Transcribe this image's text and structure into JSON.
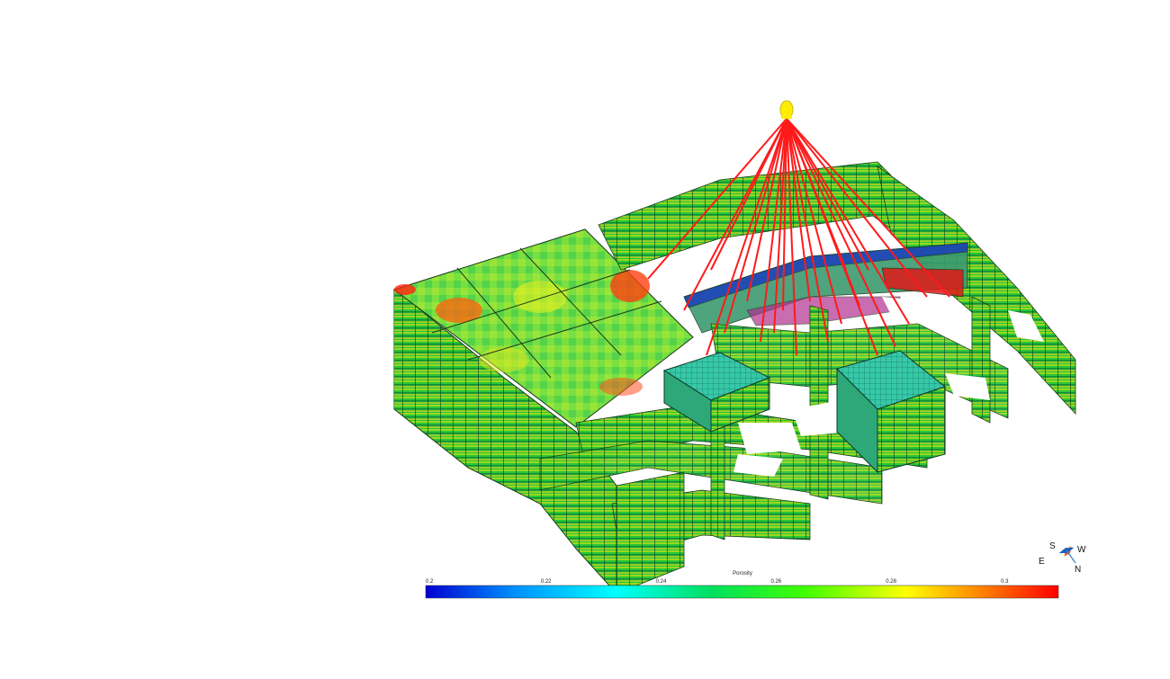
{
  "colorbar": {
    "title": "Porosity",
    "ticks": [
      "0.2",
      "0.22",
      "0.24",
      "0.26",
      "0.28",
      "0.3"
    ],
    "min": 0.2,
    "max": 0.31,
    "colors": [
      "#0000d0",
      "#0090ff",
      "#00ffff",
      "#00e060",
      "#40ff00",
      "#ffff00",
      "#ff8000",
      "#ff0000"
    ]
  },
  "compass": {
    "s": "S",
    "w": "W",
    "e": "E",
    "n": "N"
  },
  "scene": {
    "well_color": "#ff1a1a",
    "platform_color": "#ffee00",
    "grid_color": "#1a3a1a"
  }
}
